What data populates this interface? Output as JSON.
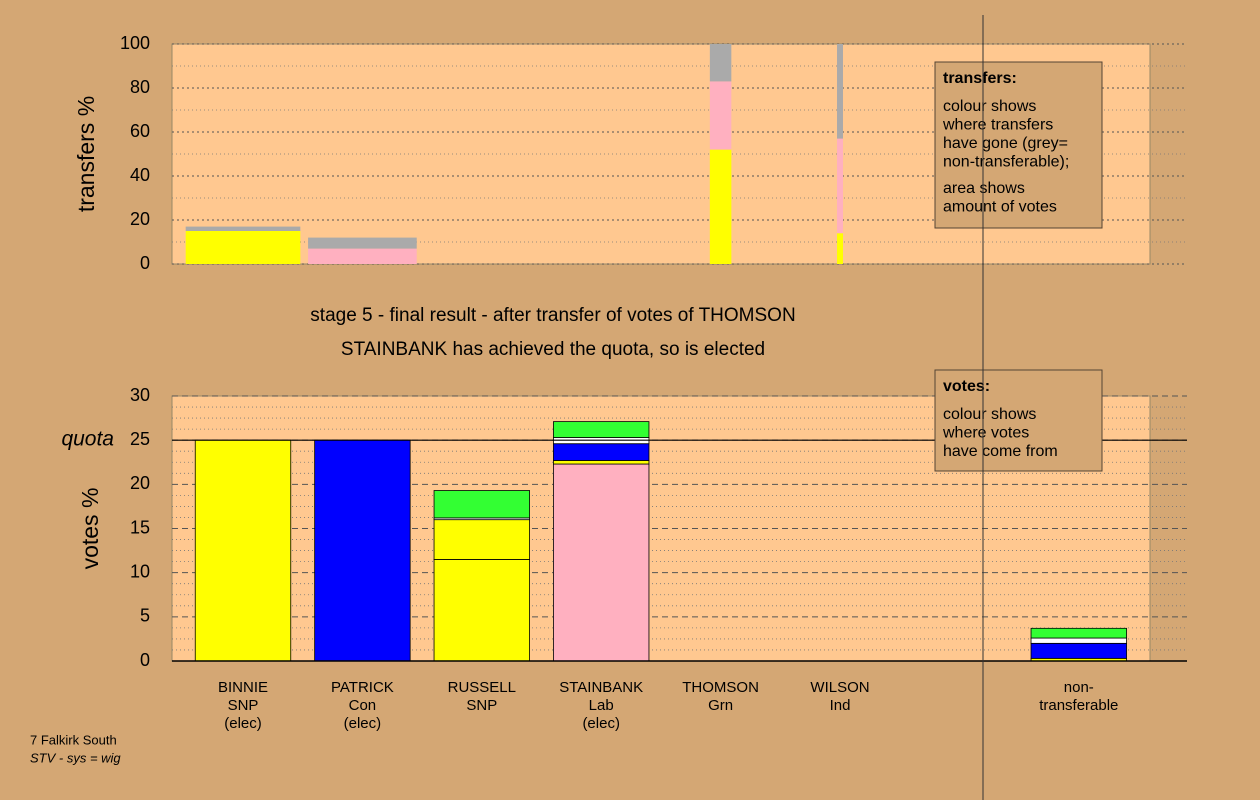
{
  "chart_data": [
    {
      "type": "bar",
      "ylabel": "transfers %",
      "ylim": [
        0,
        100
      ],
      "yticks": [
        0,
        20,
        40,
        60,
        80,
        100
      ],
      "widths": [
        0.96,
        0.91,
        null,
        null,
        0.18,
        0.05,
        null,
        null
      ],
      "stacks": [
        [
          {
            "color": "#ffff00",
            "value": 15
          },
          {
            "color": "#aaaaaa",
            "value": 2
          }
        ],
        [
          {
            "color": "#ffb0c0",
            "value": 7
          },
          {
            "color": "#aaaaaa",
            "value": 5
          }
        ],
        [],
        [],
        [
          {
            "color": "#ffff00",
            "value": 52
          },
          {
            "color": "#ffb0c0",
            "value": 31
          },
          {
            "color": "#aaaaaa",
            "value": 17
          }
        ],
        [
          {
            "color": "#ffff00",
            "value": 14
          },
          {
            "color": "#ffb0c0",
            "value": 43
          },
          {
            "color": "#aaaaaa",
            "value": 43
          }
        ],
        [],
        []
      ],
      "note": {
        "heading": "transfers:",
        "paragraphs": [
          [
            "colour shows",
            "where transfers",
            "have gone (grey=",
            "non-transferable);"
          ],
          [
            "area shows",
            "amount of votes"
          ]
        ]
      }
    },
    {
      "type": "bar",
      "title": "stage 5 - final result - after transfer of votes of THOMSON",
      "subtitle": "STAINBANK has achieved the quota, so is elected",
      "ylabel": "votes %",
      "ylim": [
        0,
        30
      ],
      "yticks": [
        0,
        5,
        10,
        15,
        20,
        25,
        30
      ],
      "quota": {
        "value": 25,
        "label": "quota"
      },
      "categories": [
        [
          "BINNIE",
          "SNP",
          "(elec)"
        ],
        [
          "PATRICK",
          "Con",
          "(elec)"
        ],
        [
          "RUSSELL",
          "SNP"
        ],
        [
          "STAINBANK",
          "Lab",
          "(elec)"
        ],
        [
          "THOMSON",
          "Grn"
        ],
        [
          "WILSON",
          "Ind"
        ],
        null,
        [
          "non-",
          "transferable"
        ]
      ],
      "stacks": [
        [
          {
            "color": "#ffff00",
            "value": 25
          }
        ],
        [
          {
            "color": "#0000ff",
            "value": 25
          }
        ],
        [
          {
            "color": "#ffff00",
            "value": 11.5
          },
          {
            "color": "#ffff00",
            "value": 4.5
          },
          {
            "color": "#ffffff",
            "value": 0.2
          },
          {
            "color": "#33ff33",
            "value": 3.1
          }
        ],
        [
          {
            "color": "#ffb0c0",
            "value": 22.3
          },
          {
            "color": "#ffff00",
            "value": 0.4
          },
          {
            "color": "#0000ff",
            "value": 1.9
          },
          {
            "color": "#ffffff",
            "value": 0.7
          },
          {
            "color": "#33ff33",
            "value": 1.8
          }
        ],
        [
          {
            "color": "#aaaaaa",
            "value": 0
          }
        ],
        [
          {
            "color": "#aaaaaa",
            "value": 0
          }
        ],
        [],
        [
          {
            "color": "#ffff00",
            "value": 0.3
          },
          {
            "color": "#0000ff",
            "value": 1.7
          },
          {
            "color": "#ffffff",
            "value": 0.6
          },
          {
            "color": "#33ff33",
            "value": 1.1
          }
        ]
      ],
      "note": {
        "heading": "votes:",
        "paragraphs": [
          [
            "colour shows",
            "where votes",
            "have come from"
          ]
        ]
      }
    }
  ],
  "footer": [
    "7 Falkirk South",
    "STV - sys = wig"
  ]
}
